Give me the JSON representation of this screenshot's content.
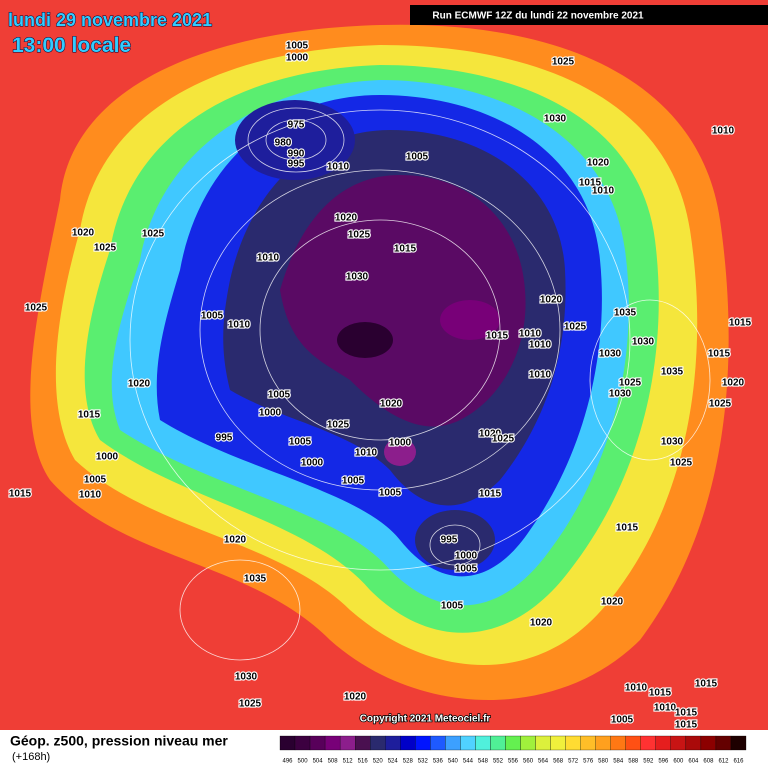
{
  "header": {
    "title": "lundi 29 novembre 2021",
    "subtitle": "13:00 locale",
    "run": "Run ECMWF 12Z du lundi 22 novembre 2021"
  },
  "copyright": "Copyright 2021 Meteociel.fr",
  "footer": {
    "label": "Géop. z500, pression niveau mer",
    "lead": "(+168h)"
  },
  "colorbar": {
    "levels": [
      496,
      500,
      504,
      508,
      512,
      516,
      520,
      524,
      528,
      532,
      536,
      540,
      544,
      548,
      552,
      556,
      560,
      564,
      568,
      572,
      576,
      580,
      584,
      588,
      592,
      596,
      600,
      604,
      608,
      612,
      616
    ],
    "colors": [
      "#2a0030",
      "#3c0040",
      "#58005a",
      "#780078",
      "#8c1e8c",
      "#4a1050",
      "#2a2a6e",
      "#1e1e9c",
      "#0000c8",
      "#0014ff",
      "#1e5aff",
      "#3ca0ff",
      "#50d2ff",
      "#50f0dc",
      "#50f096",
      "#64f050",
      "#a0f03c",
      "#dcf03c",
      "#f0f03c",
      "#ffdc32",
      "#ffbe28",
      "#ffa01e",
      "#ff7814",
      "#ff5014",
      "#ff3232",
      "#e61e1e",
      "#c81414",
      "#aa0a0a",
      "#8c0000",
      "#640000",
      "#1e0000"
    ]
  },
  "isobar_labels": [
    "1005",
    "1000",
    "1025",
    "975",
    "980",
    "990",
    "995",
    "1030",
    "1010",
    "1005",
    "1010",
    "1020",
    "1015",
    "1010",
    "1020",
    "1025",
    "1015",
    "1020",
    "1025",
    "1025",
    "1010",
    "1030",
    "1025",
    "1005",
    "1010",
    "1020",
    "1035",
    "1025",
    "1015",
    "1015",
    "1010",
    "1010",
    "1030",
    "1030",
    "1015",
    "1010",
    "1035",
    "1025",
    "1020",
    "1030",
    "1020",
    "1005",
    "1020",
    "1025",
    "1015",
    "1000",
    "1025",
    "1020",
    "1025",
    "995",
    "1005",
    "1000",
    "1030",
    "1010",
    "1000",
    "1000",
    "1025",
    "1005",
    "1005",
    "1010",
    "1005",
    "1015",
    "1015",
    "1015",
    "995",
    "1020",
    "1000",
    "1005",
    "1035",
    "1005",
    "1020",
    "1020",
    "1030",
    "1025",
    "1020",
    "1010",
    "1015",
    "1015",
    "1010",
    "1015",
    "1005",
    "1015"
  ]
}
